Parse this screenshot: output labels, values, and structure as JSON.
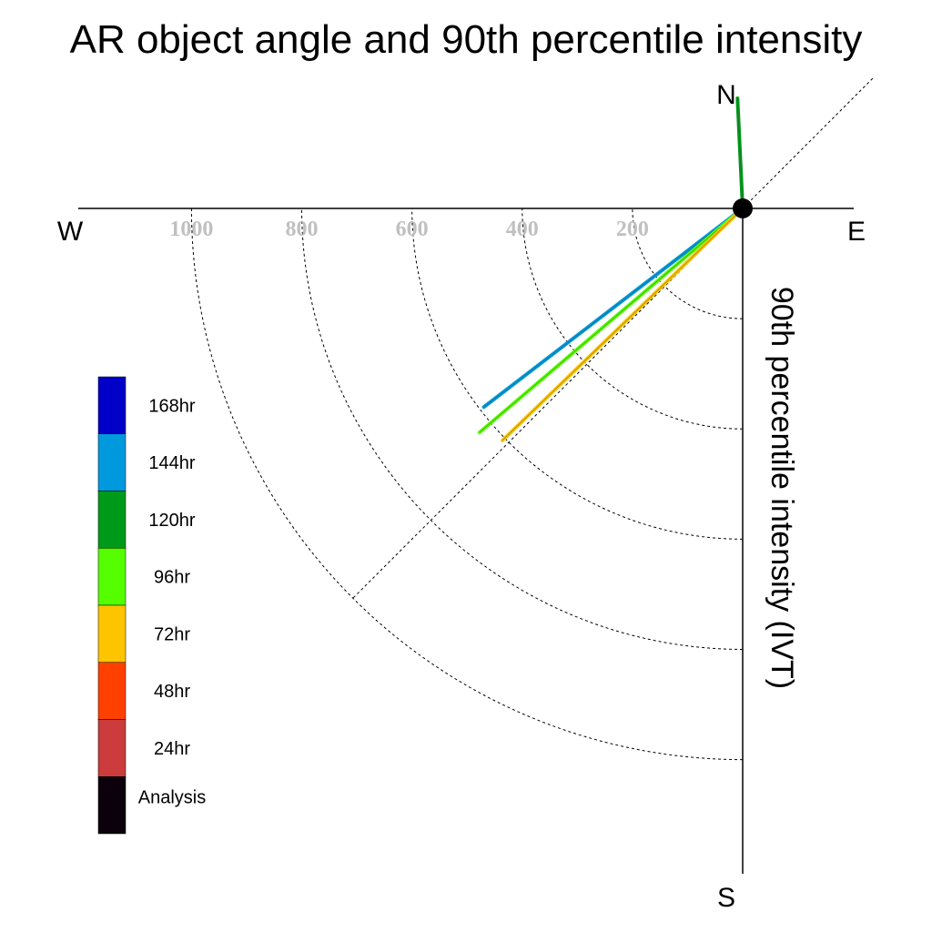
{
  "title": "AR object angle and 90th percentile intensity",
  "compass": {
    "north": "N",
    "south": "S",
    "east": "E",
    "west": "W"
  },
  "axis_label": "90th percentile intensity (IVT)",
  "chart_data": {
    "type": "polar-quadrant",
    "title": "AR object angle and 90th percentile intensity",
    "radial_label": "90th percentile intensity (IVT)",
    "radial_ticks": [
      200,
      400,
      600,
      800,
      1000
    ],
    "radial_max": 1200,
    "reference_angle_deg": 225,
    "series": [
      {
        "name": "144hr",
        "color": "#0099dd",
        "angle_deg": 232.5,
        "value": 592
      },
      {
        "name": "96hr",
        "color": "#55ff00",
        "angle_deg": 229.6,
        "value": 627
      },
      {
        "name": "72hr",
        "color": "#ffc400",
        "angle_deg": 226.0,
        "value": 606
      },
      {
        "name": "120hr",
        "color": "#009a1a",
        "angle_deg": 357.3,
        "value": 200
      }
    ],
    "legend": [
      {
        "label": "168hr",
        "color": "#0000c8"
      },
      {
        "label": "144hr",
        "color": "#0099dd"
      },
      {
        "label": "120hr",
        "color": "#009a1a"
      },
      {
        "label": "96hr",
        "color": "#55ff00"
      },
      {
        "label": "72hr",
        "color": "#ffc400"
      },
      {
        "label": "48hr",
        "color": "#ff4000"
      },
      {
        "label": "24hr",
        "color": "#cc3c3c"
      },
      {
        "label": "Analysis",
        "color": "#0c000c"
      }
    ]
  }
}
